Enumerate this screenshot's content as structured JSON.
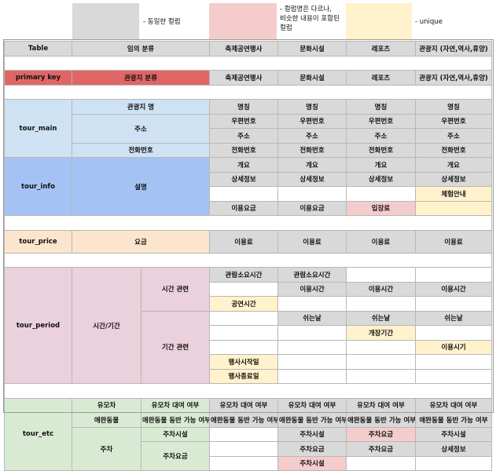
{
  "legend": [
    {
      "text": "- 동일한 컬럼",
      "color": "#d9d9d9"
    },
    {
      "text": "- 컬럼명은 다르나,\n비슷한 내용이 포함된\n컬럼",
      "color": "#f4cccc"
    },
    {
      "text": "- unique",
      "color": "#fff2cc"
    }
  ],
  "header": {
    "table": "Table",
    "category": "임의 분류",
    "cols": [
      "축제공연행사",
      "문화시설",
      "레포츠",
      "관광지 (자연,역사,휴양)"
    ]
  },
  "primary_key": {
    "label": "primary key",
    "category": "관광지 분류",
    "cols": [
      "축제공연행사",
      "문화시설",
      "레포츠",
      "관광지 (자연,역사,휴양)"
    ]
  },
  "tour_main": {
    "label": "tour_main",
    "name_cat": "관광지 명",
    "name_vals": [
      "명칭",
      "명칭",
      "명칭",
      "명칭"
    ],
    "addr_cat": "주소",
    "zip_vals": [
      "우편번호",
      "우편번호",
      "우편번호",
      "우편번호"
    ],
    "addr_vals": [
      "주소",
      "주소",
      "주소",
      "주소"
    ],
    "tel_cat": "전화번호",
    "tel_vals": [
      "전화번호",
      "전화번호",
      "전화번호",
      "전화번호"
    ]
  },
  "tour_info": {
    "label": "tour_info",
    "cat": "설명",
    "overview": [
      "개요",
      "개요",
      "개요",
      "개요"
    ],
    "detail": [
      "상세정보",
      "상세정보",
      "상세정보",
      "상세정보"
    ],
    "guide": "체험안내",
    "fee": [
      "이용요금",
      "이용요금",
      "입장료"
    ]
  },
  "tour_price": {
    "label": "tour_price",
    "cat": "요금",
    "vals": [
      "이용료",
      "이용료",
      "이용료",
      "이용료"
    ]
  },
  "tour_period": {
    "label": "tour_period",
    "cat": "시간/기간",
    "time_sub": "시간 관련",
    "duration": [
      "관람소요시간",
      "관람소요시간"
    ],
    "usetime": [
      "이용시간",
      "이용시간",
      "이용시간"
    ],
    "showtime": "공연시간",
    "period_sub": "기간 관련",
    "rest": [
      "쉬는날",
      "쉬는날",
      "쉬는날"
    ],
    "open_period": "개장기간",
    "use_period": "이용시기",
    "start": "행사시작일",
    "end": "행사종료일"
  },
  "tour_etc": {
    "label": "tour_etc",
    "stroller_cat": "유모차",
    "stroller_sub": "유모차 대여 여부",
    "stroller_vals": [
      "유모차 대여 여부",
      "유모차 대여 여부",
      "유모차 대여 여부",
      "유모차 대여 여부"
    ],
    "pet_cat": "애완동물",
    "pet_sub": "애완동물 동반 가능 여부",
    "pet_vals": [
      "애완동물 동반 가능 여부",
      "애완동물 동반 가능 여부",
      "애완동물 동반 가능 여부",
      "애완동물 동반 가능 여부"
    ],
    "parking_cat": "주차",
    "parking_sub": "주차시설",
    "parking_fee_sub": "주차요금",
    "parking_r1": [
      "주차시설",
      "주차요금",
      "주차시설"
    ],
    "parking_r2": [
      "주차요금",
      "주차요금",
      "상세정보"
    ],
    "parking_r3": "주차시설"
  }
}
